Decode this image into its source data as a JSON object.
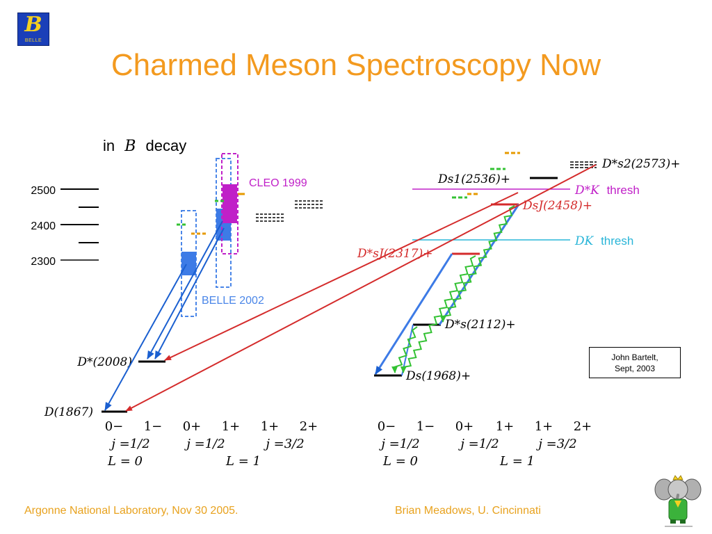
{
  "logo": {
    "letter": "B",
    "text": "BELLE"
  },
  "title": "Charmed Meson Spectroscopy Now",
  "left_panel": {
    "heading_prefix": "in",
    "heading_var": "B",
    "heading_suffix": "decay",
    "mass_ticks": [
      "2500",
      "2400",
      "2300"
    ],
    "cleo_label": "CLEO 1999",
    "belle_label": "BELLE 2002",
    "dstar_label": "D*(2008)",
    "d_label": "D(1867)"
  },
  "right_panel": {
    "ds2_label": "D*s2(2573)+",
    "ds1_label": "Ds1(2536)+",
    "dstark_thresh_label": "D*K",
    "thresh_word": "thresh",
    "dsj2458_label": "DsJ(2458)+",
    "dk_thresh_label": "DK",
    "dsj2317_label": "D*sJ(2317)+",
    "dsstar_label": "D*s(2112)+",
    "ds_label": "Ds(1968)+"
  },
  "quantum_numbers": {
    "jp_row": [
      "0−",
      "1−",
      "0+",
      "1+",
      "1+",
      "2+"
    ],
    "j_row": [
      "j =1/2",
      "j =1/2",
      "j =3/2"
    ],
    "l_row": [
      "L = 0",
      "L = 1"
    ]
  },
  "credit": {
    "line1": "John Bartelt,",
    "line2": "Sept, 2003"
  },
  "footer": {
    "left": "Argonne National Laboratory, Nov 30 2005.",
    "right": "Brian Meadows, U. Cincinnati"
  },
  "colors": {
    "title": "#f39a1f",
    "red_arrow": "#d42b2b",
    "blue_arrow": "#1a5fd0",
    "magenta": "#c020c8",
    "cyan": "#29b5d8",
    "green": "#33c233",
    "orange": "#e69a00"
  }
}
